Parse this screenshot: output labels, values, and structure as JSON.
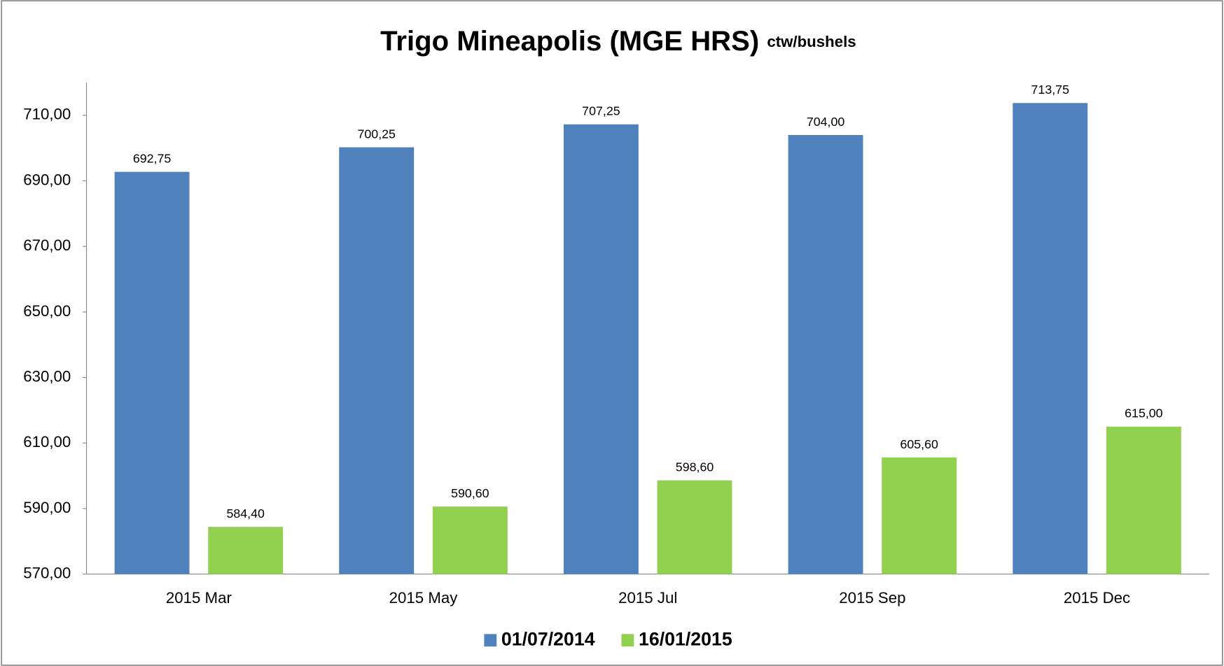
{
  "chart_data": {
    "type": "bar",
    "title": "Trigo Mineapolis (MGE HRS)",
    "subtitle": "ctw/bushels",
    "categories": [
      "2015 Mar",
      "2015 May",
      "2015 Jul",
      "2015 Sep",
      "2015 Dec"
    ],
    "series": [
      {
        "name": "01/07/2014",
        "color": "#4f81bd",
        "values": [
          692.75,
          700.25,
          707.25,
          704.0,
          713.75
        ],
        "value_labels": [
          "692,75",
          "700,25",
          "707,25",
          "704,00",
          "713,75"
        ]
      },
      {
        "name": "16/01/2015",
        "color": "#92d050",
        "values": [
          584.4,
          590.6,
          598.6,
          605.6,
          615.0
        ],
        "value_labels": [
          "584,40",
          "590,60",
          "598,60",
          "605,60",
          "615,00"
        ]
      }
    ],
    "ylim": [
      570,
      720
    ],
    "yticks": [
      {
        "value": 570,
        "label": "570,00"
      },
      {
        "value": 590,
        "label": "590,00"
      },
      {
        "value": 610,
        "label": "610,00"
      },
      {
        "value": 630,
        "label": "630,00"
      },
      {
        "value": 650,
        "label": "650,00"
      },
      {
        "value": 670,
        "label": "670,00"
      },
      {
        "value": 690,
        "label": "690,00"
      },
      {
        "value": 710,
        "label": "710,00"
      }
    ],
    "grid": false,
    "legend": "bottom"
  }
}
